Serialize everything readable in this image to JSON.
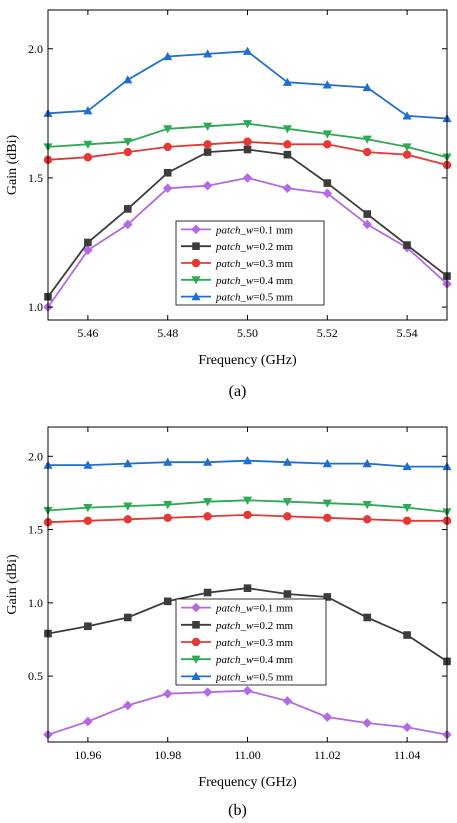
{
  "chart_data": [
    {
      "type": "line",
      "panel_label": "(a)",
      "xlabel": "Frequency (GHz)",
      "ylabel": "Gain (dBi)",
      "xlim": [
        5.45,
        5.55
      ],
      "ylim": [
        0.95,
        2.15
      ],
      "xticks": [
        5.46,
        5.48,
        5.5,
        5.52,
        5.54
      ],
      "xtick_labels": [
        "5.46",
        "5.48",
        "5.50",
        "5.52",
        "5.54"
      ],
      "yticks": [
        1.0,
        1.5,
        2.0
      ],
      "ytick_labels": [
        "1.0",
        "1.5",
        "2.0"
      ],
      "grid": false,
      "legend_position": "bottom-center",
      "x": [
        5.45,
        5.46,
        5.47,
        5.48,
        5.49,
        5.5,
        5.51,
        5.52,
        5.53,
        5.54,
        5.55
      ],
      "series": [
        {
          "name_italic": "patch_w",
          "name_rest": "=0.1 mm",
          "color": "#b36ae2",
          "marker": "diamond",
          "values": [
            1.0,
            1.22,
            1.32,
            1.46,
            1.47,
            1.5,
            1.46,
            1.44,
            1.32,
            1.23,
            1.09
          ]
        },
        {
          "name_italic": "patch_w",
          "name_rest": "=0.2 mm",
          "color": "#3c3c3c",
          "marker": "square",
          "values": [
            1.04,
            1.25,
            1.38,
            1.52,
            1.6,
            1.61,
            1.59,
            1.48,
            1.36,
            1.24,
            1.12
          ]
        },
        {
          "name_italic": "patch_w",
          "name_rest": "=0.3 mm",
          "color": "#e53935",
          "marker": "circle",
          "values": [
            1.57,
            1.58,
            1.6,
            1.62,
            1.63,
            1.64,
            1.63,
            1.63,
            1.6,
            1.59,
            1.55
          ]
        },
        {
          "name_italic": "patch_w",
          "name_rest": "=0.4 mm",
          "color": "#2eaa54",
          "marker": "triangle-down",
          "values": [
            1.62,
            1.63,
            1.64,
            1.69,
            1.7,
            1.71,
            1.69,
            1.67,
            1.65,
            1.62,
            1.58
          ]
        },
        {
          "name_italic": "patch_w",
          "name_rest": "=0.5 mm",
          "color": "#1f6fd1",
          "marker": "triangle-up",
          "values": [
            1.75,
            1.76,
            1.88,
            1.97,
            1.98,
            1.99,
            1.87,
            1.86,
            1.85,
            1.74,
            1.73
          ]
        }
      ]
    },
    {
      "type": "line",
      "panel_label": "(b)",
      "xlabel": "Frequency (GHz)",
      "ylabel": "Gain (dBi)",
      "xlim": [
        10.95,
        11.05
      ],
      "ylim": [
        0.05,
        2.2
      ],
      "xticks": [
        10.96,
        10.98,
        11.0,
        11.02,
        11.04
      ],
      "xtick_labels": [
        "10.96",
        "10.98",
        "11.00",
        "11.02",
        "11.04"
      ],
      "yticks": [
        0.5,
        1.0,
        1.5,
        2.0
      ],
      "ytick_labels": [
        "0.5",
        "1.0",
        "1.5",
        "2.0"
      ],
      "grid": false,
      "legend_position": "bottom-center",
      "x": [
        10.95,
        10.96,
        10.97,
        10.98,
        10.99,
        11.0,
        11.01,
        11.02,
        11.03,
        11.04,
        11.05
      ],
      "series": [
        {
          "name_italic": "patch_w",
          "name_rest": "=0.1 mm",
          "color": "#b36ae2",
          "marker": "diamond",
          "values": [
            0.1,
            0.19,
            0.3,
            0.38,
            0.39,
            0.4,
            0.33,
            0.22,
            0.18,
            0.15,
            0.1
          ]
        },
        {
          "name_italic": "patch_w",
          "name_rest": "=0.2 mm",
          "color": "#3c3c3c",
          "marker": "square",
          "values": [
            0.79,
            0.84,
            0.9,
            1.01,
            1.07,
            1.1,
            1.06,
            1.04,
            0.9,
            0.78,
            0.6
          ]
        },
        {
          "name_italic": "patch_w",
          "name_rest": "=0.3 mm",
          "color": "#e53935",
          "marker": "circle",
          "values": [
            1.55,
            1.56,
            1.57,
            1.58,
            1.59,
            1.6,
            1.59,
            1.58,
            1.57,
            1.56,
            1.56
          ]
        },
        {
          "name_italic": "patch_w",
          "name_rest": "=0.4 mm",
          "color": "#2eaa54",
          "marker": "triangle-down",
          "values": [
            1.63,
            1.65,
            1.66,
            1.67,
            1.69,
            1.7,
            1.69,
            1.68,
            1.67,
            1.65,
            1.62
          ]
        },
        {
          "name_italic": "patch_w",
          "name_rest": "=0.5 mm",
          "color": "#1f6fd1",
          "marker": "triangle-up",
          "values": [
            1.94,
            1.94,
            1.95,
            1.96,
            1.96,
            1.97,
            1.96,
            1.95,
            1.95,
            1.93,
            1.93
          ]
        }
      ]
    }
  ]
}
